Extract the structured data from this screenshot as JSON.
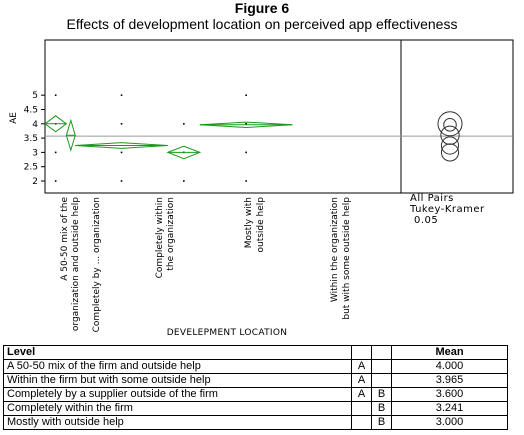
{
  "figure": {
    "title": "Figure 6",
    "subtitle": "Effects of development location on perceived app effectiveness"
  },
  "chart_data": {
    "type": "oneway-means-diamonds",
    "ylabel": "AE",
    "xlabel": "DEVELEPMENT LOCATION",
    "ylim": [
      1.85,
      5.25
    ],
    "yticks": [
      2,
      2.5,
      3,
      3.5,
      4,
      4.5,
      5
    ],
    "ytick_labels": [
      "2",
      "2.5",
      "3",
      "3.5",
      "4",
      "4.5",
      "5"
    ],
    "grand_mean": 3.57,
    "categories": [
      "A 50-50 mix of the organization and outside help",
      "Completely by ... organization",
      "Completely within the organization",
      "Mostly with outside help",
      "Within the organization but with some outside help"
    ],
    "category_label_lines": [
      [
        "A 50-50 mix of the",
        "organization and outside help"
      ],
      [
        "Completely by ... organization"
      ],
      [
        "Completely within",
        "the organization"
      ],
      [
        "Mostly with",
        "outside help"
      ],
      [
        "Within the organization",
        "but with some outside help"
      ]
    ],
    "means": [
      4.0,
      3.6,
      3.241,
      3.0,
      3.965
    ],
    "ci_lower": [
      3.72,
      3.08,
      3.14,
      2.78,
      3.87
    ],
    "ci_upper": [
      4.28,
      4.12,
      3.34,
      3.22,
      4.06
    ],
    "x_widths": [
      0.06,
      0.025,
      0.26,
      0.09,
      0.26
    ],
    "x_starts": [
      0.0,
      0.06,
      0.085,
      0.345,
      0.435
    ],
    "points": [
      [
        0,
        2
      ],
      [
        0,
        3
      ],
      [
        0,
        4
      ],
      [
        0,
        5
      ],
      [
        2,
        2
      ],
      [
        2,
        3
      ],
      [
        2,
        4
      ],
      [
        2,
        5
      ],
      [
        3,
        2
      ],
      [
        3,
        3
      ],
      [
        3,
        4
      ],
      [
        4,
        2
      ],
      [
        4,
        3
      ],
      [
        4,
        4
      ],
      [
        4,
        5
      ]
    ],
    "comparison_circles": [
      {
        "center": 4.0,
        "radius": 0.42
      },
      {
        "center": 3.965,
        "radius": 0.22
      },
      {
        "center": 3.6,
        "radius": 0.32
      },
      {
        "center": 3.241,
        "radius": 0.3
      },
      {
        "center": 3.0,
        "radius": 0.3
      }
    ],
    "comparison_label": [
      "All Pairs",
      "Tukey-Kramer",
      "0.05"
    ],
    "diamond_color": "#1a9a1a",
    "grand_mean_color": "#999999"
  },
  "table": {
    "header": {
      "level": "Level",
      "mean": "Mean"
    },
    "rows": [
      {
        "level": "A 50-50 mix of the firm and outside help",
        "g1": "A",
        "g2": "",
        "mean": "4.000"
      },
      {
        "level": "Within the firm but with some outside help",
        "g1": "A",
        "g2": "",
        "mean": "3.965"
      },
      {
        "level": "Completely by a supplier outside of the firm",
        "g1": "A",
        "g2": "B",
        "mean": "3.600"
      },
      {
        "level": "Completely within the firm",
        "g1": "",
        "g2": "B",
        "mean": "3.241"
      },
      {
        "level": "Mostly with outside help",
        "g1": "",
        "g2": "B",
        "mean": "3.000"
      }
    ]
  }
}
